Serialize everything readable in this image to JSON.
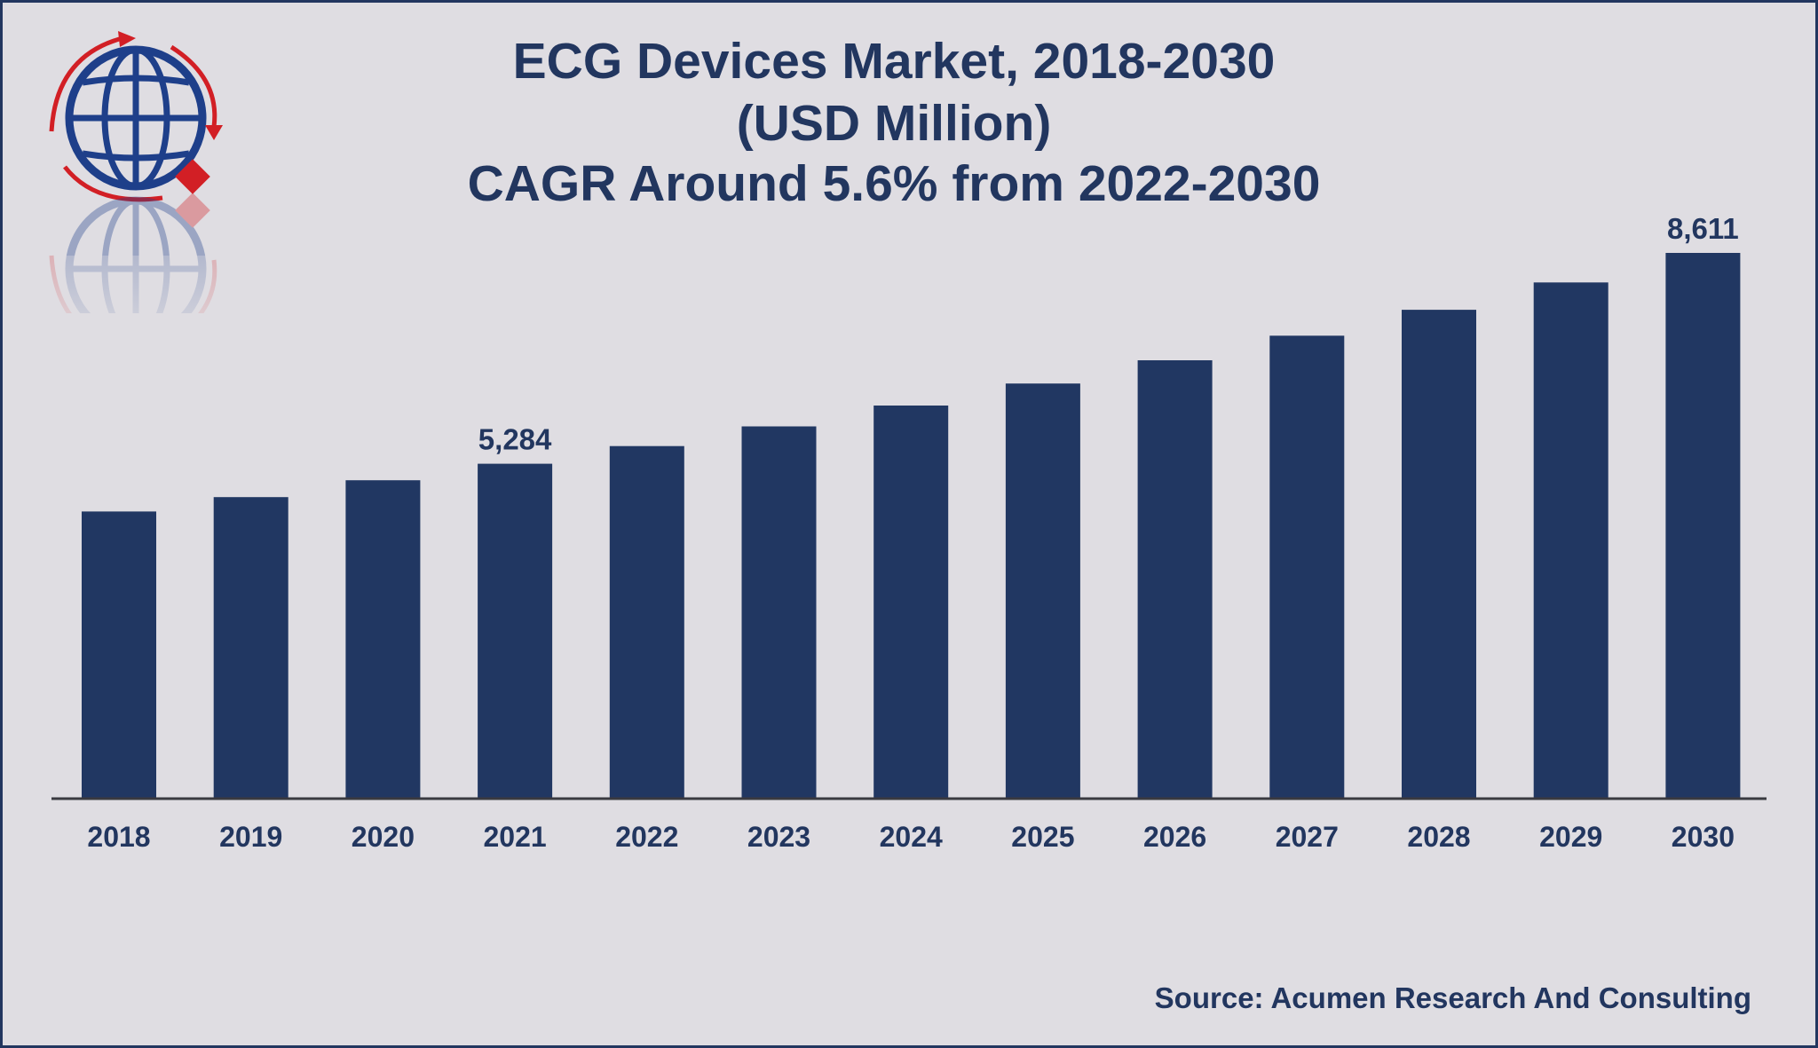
{
  "chart_data": {
    "type": "bar",
    "title": [
      "ECG Devices Market, 2018-2030",
      "(USD Million)",
      "CAGR Around 5.6% from 2022-2030"
    ],
    "categories": [
      "2018",
      "2019",
      "2020",
      "2021",
      "2022",
      "2023",
      "2024",
      "2025",
      "2026",
      "2027",
      "2028",
      "2029",
      "2030"
    ],
    "values": [
      4531,
      4758,
      5024,
      5284,
      5563,
      5874,
      6203,
      6550,
      6917,
      7304,
      7713,
      8145,
      8611
    ],
    "data_labels": [
      {
        "category": "2021",
        "text": "5,284"
      },
      {
        "category": "2030",
        "text": "8,611"
      }
    ],
    "ylim": [
      0,
      9000
    ],
    "grid": false,
    "xlabel": "",
    "ylabel": ""
  },
  "source": "Source: Acumen Research And Consulting",
  "colors": {
    "bar": "#213762",
    "text": "#22365f",
    "background": "#dfdde2",
    "axis": "#3a3a40",
    "logo_red": "#d21f25",
    "logo_blue": "#1e3f8a"
  },
  "logo": {
    "icon": "globe-logo-icon"
  }
}
